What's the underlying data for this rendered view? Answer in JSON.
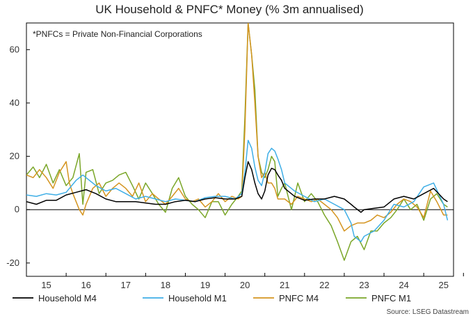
{
  "chart_data": {
    "type": "line",
    "title": "UK Household & PNFC* Money (% 3m annualised)",
    "annotation": "*PNFCs = Private Non-Financial Corporations",
    "source": "Source: LSEG Datastream",
    "xlabel": "",
    "ylabel": "",
    "x_start": 2014.5,
    "x_end": 2025.25,
    "ylim": [
      -25,
      70
    ],
    "yticks": [
      -20,
      0,
      20,
      40,
      60
    ],
    "xtick_labels": [
      "15",
      "16",
      "17",
      "18",
      "19",
      "20",
      "21",
      "22",
      "23",
      "24",
      "25"
    ],
    "zero_line": true,
    "legend_position": "bottom",
    "series": [
      {
        "name": "Household M4",
        "color": "#000000",
        "x": [
          2014.5,
          2014.75,
          2015.0,
          2015.25,
          2015.5,
          2015.75,
          2016.0,
          2016.25,
          2016.5,
          2016.75,
          2017.0,
          2017.25,
          2017.5,
          2017.75,
          2018.0,
          2018.25,
          2018.5,
          2018.75,
          2019.0,
          2019.25,
          2019.5,
          2019.75,
          2019.92,
          2020.0,
          2020.08,
          2020.17,
          2020.25,
          2020.33,
          2020.42,
          2020.5,
          2020.58,
          2020.67,
          2020.75,
          2020.83,
          2020.92,
          2021.0,
          2021.25,
          2021.5,
          2021.75,
          2022.0,
          2022.25,
          2022.5,
          2022.67,
          2022.75,
          2022.92,
          2023.0,
          2023.25,
          2023.5,
          2023.75,
          2024.0,
          2024.25,
          2024.5,
          2024.75,
          2025.0,
          2025.1
        ],
        "values": [
          3,
          2,
          3.5,
          3.5,
          5.5,
          6.5,
          7.5,
          6,
          4,
          3,
          3,
          3,
          2.5,
          2,
          2,
          3,
          3.5,
          3,
          4,
          4.5,
          4,
          4,
          5,
          12,
          18,
          15,
          10,
          6,
          4,
          7,
          13,
          15.5,
          15,
          13,
          11,
          8,
          5,
          3.5,
          4,
          4,
          5,
          4,
          2,
          1,
          -1,
          0,
          0.5,
          1,
          4,
          5,
          4,
          6,
          8,
          4,
          3
        ]
      },
      {
        "name": "Household M1",
        "color": "#3eaee6",
        "x": [
          2014.5,
          2014.75,
          2015.0,
          2015.25,
          2015.5,
          2015.75,
          2015.92,
          2016.0,
          2016.25,
          2016.5,
          2016.75,
          2017.0,
          2017.25,
          2017.5,
          2017.75,
          2018.0,
          2018.25,
          2018.5,
          2018.75,
          2019.0,
          2019.25,
          2019.5,
          2019.75,
          2019.92,
          2020.0,
          2020.08,
          2020.17,
          2020.25,
          2020.33,
          2020.42,
          2020.5,
          2020.58,
          2020.67,
          2020.75,
          2020.83,
          2020.92,
          2021.0,
          2021.25,
          2021.5,
          2021.75,
          2022.0,
          2022.25,
          2022.5,
          2022.67,
          2022.75,
          2022.92,
          2023.0,
          2023.25,
          2023.5,
          2023.75,
          2024.0,
          2024.25,
          2024.5,
          2024.75,
          2025.0,
          2025.1
        ],
        "values": [
          5.5,
          5,
          6,
          5.5,
          6.5,
          11,
          13,
          12,
          9,
          7,
          8,
          6,
          4,
          5,
          4,
          3,
          4,
          3.5,
          3,
          4.5,
          5,
          5,
          4,
          6,
          14,
          26,
          23,
          16,
          11,
          9,
          14,
          21,
          23,
          22,
          19,
          15,
          10,
          7,
          5,
          3,
          4,
          2,
          0,
          -5,
          -10,
          -12,
          -10,
          -8,
          -4,
          2,
          1,
          3,
          8.5,
          10,
          2,
          -4
        ]
      },
      {
        "name": "PNFC M4",
        "color": "#d4941f",
        "x": [
          2014.5,
          2014.67,
          2014.83,
          2015.0,
          2015.17,
          2015.33,
          2015.5,
          2015.58,
          2015.67,
          2015.83,
          2015.92,
          2016.0,
          2016.17,
          2016.33,
          2016.5,
          2016.67,
          2016.83,
          2017.0,
          2017.17,
          2017.33,
          2017.5,
          2017.67,
          2017.83,
          2018.0,
          2018.17,
          2018.33,
          2018.5,
          2018.67,
          2018.83,
          2019.0,
          2019.17,
          2019.33,
          2019.5,
          2019.67,
          2019.83,
          2019.92,
          2020.0,
          2020.08,
          2020.17,
          2020.25,
          2020.33,
          2020.42,
          2020.5,
          2020.58,
          2020.67,
          2020.75,
          2020.83,
          2020.92,
          2021.0,
          2021.17,
          2021.33,
          2021.5,
          2021.67,
          2021.83,
          2022.0,
          2022.17,
          2022.33,
          2022.5,
          2022.67,
          2022.83,
          2023.0,
          2023.17,
          2023.33,
          2023.5,
          2023.67,
          2023.83,
          2024.0,
          2024.17,
          2024.33,
          2024.5,
          2024.67,
          2024.83,
          2025.0,
          2025.1
        ],
        "values": [
          13,
          12,
          15,
          12,
          8,
          14,
          18,
          10,
          6,
          0,
          -2,
          2,
          8,
          10,
          5,
          8,
          10,
          8,
          5,
          10,
          3,
          6,
          4,
          2,
          5,
          8,
          4,
          3,
          4,
          1,
          3,
          6,
          3,
          5,
          4,
          5,
          30,
          70,
          58,
          40,
          20,
          12,
          14,
          10,
          10,
          8,
          4,
          4,
          4,
          2,
          5,
          4,
          3,
          4,
          2,
          0,
          -3,
          -8,
          -6,
          -5,
          -5,
          -4,
          -2,
          -3,
          -1,
          2,
          4,
          3,
          1,
          -3,
          7,
          3,
          -2,
          -2
        ]
      },
      {
        "name": "PNFC M1",
        "color": "#7aa628",
        "x": [
          2014.5,
          2014.67,
          2014.83,
          2015.0,
          2015.17,
          2015.33,
          2015.5,
          2015.67,
          2015.83,
          2015.92,
          2016.0,
          2016.17,
          2016.33,
          2016.5,
          2016.67,
          2016.83,
          2017.0,
          2017.17,
          2017.33,
          2017.5,
          2017.67,
          2017.83,
          2018.0,
          2018.17,
          2018.33,
          2018.5,
          2018.67,
          2018.83,
          2019.0,
          2019.17,
          2019.33,
          2019.5,
          2019.67,
          2019.83,
          2019.92,
          2020.0,
          2020.08,
          2020.17,
          2020.25,
          2020.33,
          2020.42,
          2020.5,
          2020.58,
          2020.67,
          2020.75,
          2020.83,
          2020.92,
          2021.0,
          2021.17,
          2021.33,
          2021.5,
          2021.67,
          2021.83,
          2022.0,
          2022.17,
          2022.33,
          2022.5,
          2022.67,
          2022.83,
          2023.0,
          2023.17,
          2023.33,
          2023.5,
          2023.67,
          2023.83,
          2024.0,
          2024.17,
          2024.33,
          2024.5,
          2024.67,
          2024.83,
          2025.0,
          2025.1
        ],
        "values": [
          13,
          16,
          12,
          17,
          10,
          15,
          9,
          12,
          21,
          2,
          14,
          15,
          6,
          10,
          11,
          13,
          14,
          9,
          4,
          10,
          6,
          2,
          -1,
          8,
          12,
          5,
          2,
          0,
          -3,
          3,
          3,
          -2,
          2,
          5,
          7,
          35,
          70,
          58,
          45,
          20,
          14,
          12,
          15,
          20,
          18,
          5,
          8,
          10,
          0,
          10,
          3,
          6,
          3,
          -2,
          -6,
          -12,
          -19,
          -12,
          -10,
          -15,
          -8,
          -8,
          -5,
          -3,
          0,
          4,
          0,
          2,
          -4,
          4,
          6,
          2,
          1
        ]
      }
    ]
  }
}
